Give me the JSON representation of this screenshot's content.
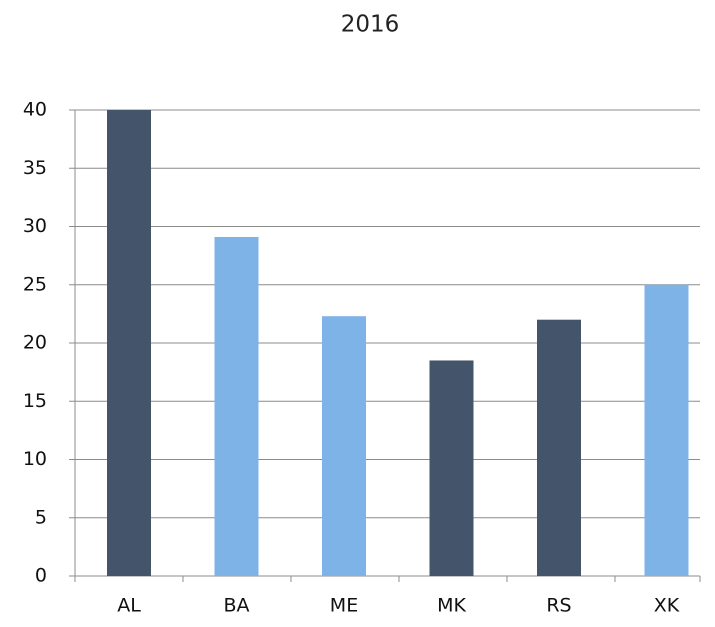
{
  "chart_data": {
    "type": "bar",
    "title": "2016",
    "categories": [
      "AL",
      "BA",
      "ME",
      "MK",
      "RS",
      "XK"
    ],
    "values": [
      40,
      29.1,
      22.3,
      18.5,
      22,
      25
    ],
    "colors": [
      "#44546a",
      "#7eb3e8",
      "#7eb3e8",
      "#44546a",
      "#44546a",
      "#7eb3e8"
    ],
    "ylim": [
      0,
      40
    ],
    "yticks": [
      0,
      5,
      10,
      15,
      20,
      25,
      30,
      35,
      40
    ],
    "grid": true
  }
}
